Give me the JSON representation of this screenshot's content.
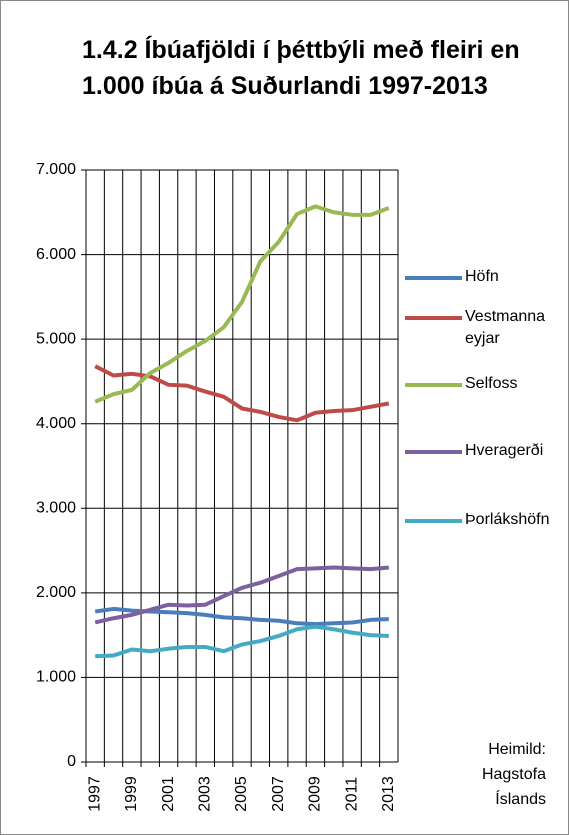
{
  "chart_data": {
    "type": "line",
    "title": "1.4.2 Íbúafjöldi í þéttbýli með fleiri en 1.000 íbúa á Suðurlandi 1997-2013",
    "categories": [
      "1997",
      null,
      "1999",
      null,
      "2001",
      null,
      "2003",
      null,
      "2005",
      null,
      "2007",
      null,
      "2009",
      null,
      "2011",
      null,
      "2013"
    ],
    "series": [
      {
        "name": "Höfn",
        "color": "#4a7ebb",
        "values": [
          1780,
          1810,
          1790,
          1780,
          1770,
          1760,
          1740,
          1710,
          1700,
          1680,
          1670,
          1640,
          1630,
          1640,
          1650,
          1680,
          1690
        ]
      },
      {
        "name": "Vestmanna eyjar",
        "color": "#be4b48",
        "values": [
          4680,
          4570,
          4590,
          4560,
          4460,
          4450,
          4380,
          4320,
          4180,
          4140,
          4080,
          4040,
          4130,
          4150,
          4160,
          4200,
          4240
        ]
      },
      {
        "name": "Selfoss",
        "color": "#98b954",
        "values": [
          4260,
          4350,
          4400,
          4600,
          4720,
          4860,
          4980,
          5140,
          5440,
          5920,
          6150,
          6480,
          6570,
          6500,
          6470,
          6470,
          6550
        ]
      },
      {
        "name": "Hveragerði",
        "color": "#7d60a0",
        "values": [
          1650,
          1700,
          1740,
          1800,
          1860,
          1850,
          1860,
          1960,
          2060,
          2120,
          2200,
          2280,
          2290,
          2300,
          2290,
          2280,
          2300
        ]
      },
      {
        "name": "Þorlákshöfn",
        "color": "#46aac5",
        "values": [
          1250,
          1260,
          1330,
          1310,
          1340,
          1360,
          1360,
          1310,
          1390,
          1430,
          1490,
          1570,
          1600,
          1570,
          1530,
          1500,
          1490
        ]
      }
    ],
    "ylim": [
      0,
      7000
    ],
    "yticks": [
      {
        "value": 0,
        "label": "0"
      },
      {
        "value": 1000,
        "label": "1.000"
      },
      {
        "value": 2000,
        "label": "2.000"
      },
      {
        "value": 3000,
        "label": "3.000"
      },
      {
        "value": 4000,
        "label": "4.000"
      },
      {
        "value": 5000,
        "label": "5.000"
      },
      {
        "value": 6000,
        "label": "6.000"
      },
      {
        "value": 7000,
        "label": "7.000"
      }
    ],
    "grid": true,
    "legend": "right",
    "source": "Heimild: Hagstofa Íslands"
  }
}
